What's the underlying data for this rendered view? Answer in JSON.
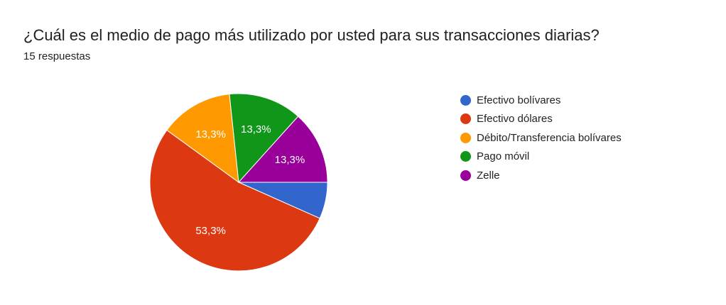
{
  "header": {
    "title": "¿Cuál es el medio de pago más utilizado por usted para sus transacciones diarias?",
    "response_count": "15 respuestas"
  },
  "chart_data": {
    "type": "pie",
    "title": "¿Cuál es el medio de pago más utilizado por usted para sus transacciones diarias?",
    "subtitle": "15 respuestas",
    "legend_position": "right",
    "categories": [
      "Efectivo bolívares",
      "Efectivo dólares",
      "Débito/Transferencia bolívares",
      "Pago móvil",
      "Zelle"
    ],
    "values": [
      1,
      8,
      2,
      2,
      2
    ],
    "percent_labels": [
      "",
      "53,3%",
      "13,3%",
      "13,3%",
      "13,3%"
    ],
    "colors": [
      "#3366cc",
      "#dc3912",
      "#ff9900",
      "#109618",
      "#990099"
    ]
  }
}
